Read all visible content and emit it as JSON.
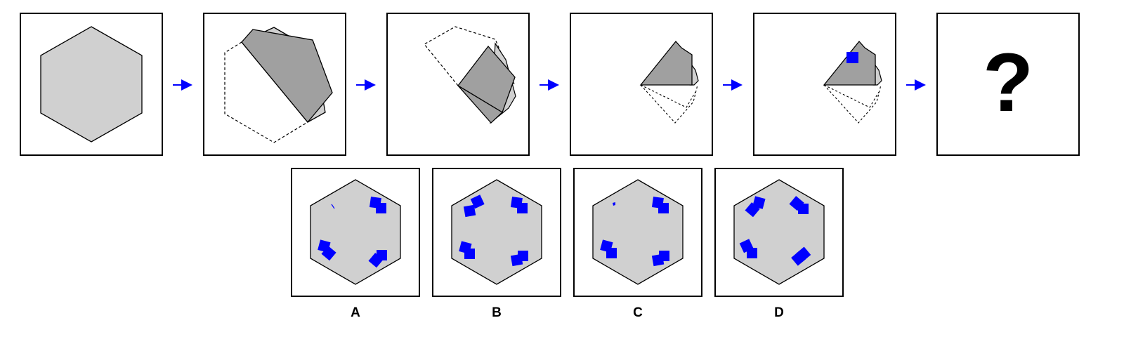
{
  "colors": {
    "hexagon_fill": "#d0d0d0",
    "folded_fill": "#a0a0a0",
    "mark_fill": "#0000ff",
    "arrow": "#0000ff",
    "outline": "#000000"
  },
  "sequence": {
    "steps": [
      {
        "name": "step-1-hexagon"
      },
      {
        "name": "step-2-first-fold"
      },
      {
        "name": "step-3-second-fold"
      },
      {
        "name": "step-4-third-fold"
      },
      {
        "name": "step-5-punched"
      },
      {
        "name": "step-6-unknown"
      }
    ],
    "question_mark": "?"
  },
  "options": [
    {
      "label": "A"
    },
    {
      "label": "B"
    },
    {
      "label": "C"
    },
    {
      "label": "D"
    }
  ]
}
